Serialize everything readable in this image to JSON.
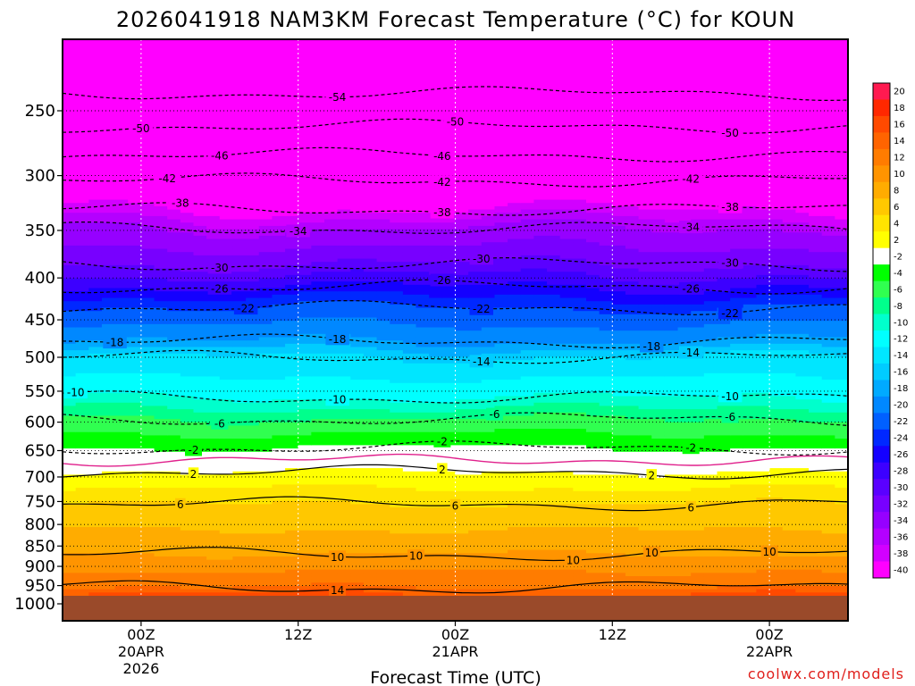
{
  "chart_data": {
    "type": "heatmap",
    "title": "2026041918 NAM3KM Forecast Temperature (°C) for KOUN",
    "xlabel": "Forecast Time (UTC)",
    "ylabel": "",
    "x_ticks": [
      {
        "time": "2026-04-20T00Z",
        "lines": [
          "00Z",
          "20APR",
          "2026"
        ]
      },
      {
        "time": "2026-04-20T12Z",
        "lines": [
          "12Z"
        ]
      },
      {
        "time": "2026-04-21T00Z",
        "lines": [
          "00Z",
          "21APR"
        ]
      },
      {
        "time": "2026-04-21T12Z",
        "lines": [
          "12Z"
        ]
      },
      {
        "time": "2026-04-22T00Z",
        "lines": [
          "00Z",
          "22APR"
        ]
      }
    ],
    "xlim": [
      "2026-04-19T18Z",
      "2026-04-22T06Z"
    ],
    "y_scale": "log-pressure",
    "y_ticks": [
      250,
      300,
      350,
      400,
      450,
      500,
      550,
      600,
      650,
      700,
      750,
      800,
      850,
      900,
      950,
      1000
    ],
    "ylim_hPa": [
      200,
      1000
    ],
    "grid": "dotted",
    "colorbar": {
      "labels": [
        20,
        18,
        16,
        14,
        12,
        10,
        8,
        6,
        4,
        2,
        -2,
        -4,
        -6,
        -8,
        -10,
        -12,
        -14,
        -16,
        -18,
        -20,
        -22,
        -24,
        -26,
        -28,
        -30,
        -32,
        -34,
        -36,
        -38,
        -40
      ],
      "colors": [
        "#ff1a50",
        "#ff2800",
        "#ff4a00",
        "#ff6400",
        "#ff7c00",
        "#ff9400",
        "#ffac00",
        "#ffc800",
        "#ffe400",
        "#ffff00",
        "#ffffff",
        "#00ff00",
        "#30ff50",
        "#00ff8c",
        "#00ffcc",
        "#00ffff",
        "#00e6ff",
        "#00ccff",
        "#00aaff",
        "#0088ff",
        "#0060ff",
        "#0028ff",
        "#1400ff",
        "#3c00ff",
        "#5a00ff",
        "#7800ff",
        "#9600ff",
        "#b400ff",
        "#d200ff",
        "#ff00ff"
      ]
    },
    "contour_levels_labeled": [
      -54,
      -50,
      -46,
      -42,
      -38,
      -34,
      -30,
      -26,
      -22,
      -18,
      -14,
      -10,
      -6,
      -2,
      2,
      6,
      10,
      14
    ],
    "contours": [
      {
        "level": -54,
        "label_times": [
          "2026-04-20T15Z"
        ],
        "pressure": 238
      },
      {
        "level": -50,
        "label_times": [
          "2026-04-20T00Z",
          "2026-04-21T00Z",
          "2026-04-21T21Z"
        ],
        "pressure": 261
      },
      {
        "level": -46,
        "label_times": [
          "2026-04-20T06Z",
          "2026-04-20T23Z"
        ],
        "pressure": 283
      },
      {
        "level": -42,
        "label_times": [
          "2026-04-20T02Z",
          "2026-04-20T23Z",
          "2026-04-21T18Z"
        ],
        "pressure": 304
      },
      {
        "level": -38,
        "label_times": [
          "2026-04-20T03Z",
          "2026-04-20T23Z",
          "2026-04-21T21Z"
        ],
        "pressure": 330
      },
      {
        "level": -34,
        "label_times": [
          "2026-04-20T12Z",
          "2026-04-21T18Z"
        ],
        "pressure": 348
      },
      {
        "level": -30,
        "label_times": [
          "2026-04-20T06Z",
          "2026-04-21T02Z",
          "2026-04-21T21Z"
        ],
        "pressure": 385
      },
      {
        "level": -26,
        "label_times": [
          "2026-04-20T06Z",
          "2026-04-20T23Z",
          "2026-04-21T18Z"
        ],
        "pressure": 410
      },
      {
        "level": -22,
        "label_times": [
          "2026-04-20T08Z",
          "2026-04-21T02Z",
          "2026-04-21T21Z"
        ],
        "pressure": 435
      },
      {
        "level": -18,
        "label_times": [
          "2026-04-19T22Z",
          "2026-04-20T15Z",
          "2026-04-21T15Z"
        ],
        "pressure": 478
      },
      {
        "level": -14,
        "label_times": [
          "2026-04-21T02Z",
          "2026-04-21T18Z"
        ],
        "pressure": 500
      },
      {
        "level": -10,
        "label_times": [
          "2026-04-19T19Z",
          "2026-04-20T15Z",
          "2026-04-21T21Z"
        ],
        "pressure": 560
      },
      {
        "level": -6,
        "label_times": [
          "2026-04-20T06Z",
          "2026-04-21T03Z",
          "2026-04-21T21Z"
        ],
        "pressure": 595
      },
      {
        "level": -2,
        "label_times": [
          "2026-04-20T04Z",
          "2026-04-20T23Z",
          "2026-04-21T18Z"
        ],
        "pressure": 645
      },
      {
        "level": 2,
        "label_times": [
          "2026-04-20T04Z",
          "2026-04-20T23Z",
          "2026-04-21T15Z"
        ],
        "pressure": 690
      },
      {
        "level": 6,
        "label_times": [
          "2026-04-20T03Z",
          "2026-04-21T00Z",
          "2026-04-21T18Z"
        ],
        "pressure": 755
      },
      {
        "level": 10,
        "label_times": [
          "2026-04-20T15Z",
          "2026-04-20T21Z",
          "2026-04-21T09Z",
          "2026-04-21T15Z",
          "2026-04-22T00Z"
        ],
        "pressure": 870
      },
      {
        "level": 14,
        "label_times": [
          "2026-04-20T15Z"
        ],
        "pressure": 955
      }
    ],
    "freezing_line_color": "#e0208c",
    "ground_color": "#9a4a2a"
  },
  "credit": "coolwx.com/models"
}
